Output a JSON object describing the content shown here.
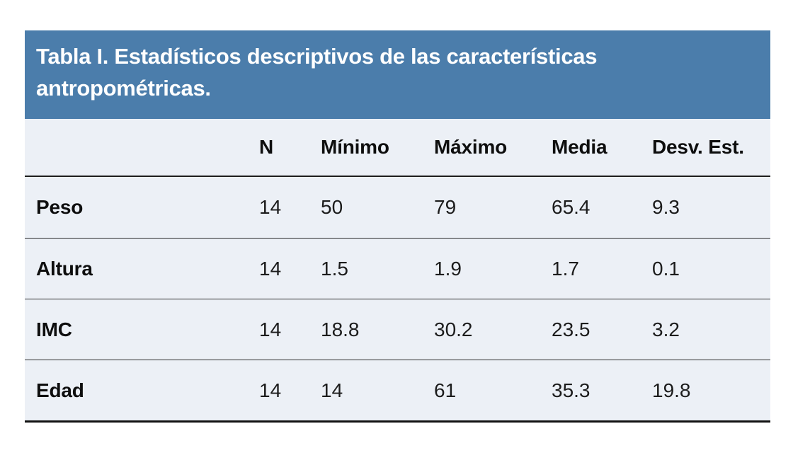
{
  "title": {
    "line1": "Tabla I. Estadísticos descriptivos de las características",
    "line2": "antropométricas."
  },
  "colors": {
    "header_bg": "#4B7DAB",
    "body_bg": "#ECF0F6",
    "line": "#1d1d1d",
    "title_text": "#FFFFFF"
  },
  "table": {
    "columns": {
      "label": "",
      "n": "N",
      "min": "Mínimo",
      "max": "Máximo",
      "media": "Media",
      "desv": "Desv. Est."
    },
    "rows": [
      {
        "label": "Peso",
        "n": "14",
        "min": "50",
        "max": "79",
        "media": "65.4",
        "desv": "9.3"
      },
      {
        "label": "Altura",
        "n": "14",
        "min": "1.5",
        "max": "1.9",
        "media": "1.7",
        "desv": "0.1"
      },
      {
        "label": "IMC",
        "n": "14",
        "min": "18.8",
        "max": "30.2",
        "media": "23.5",
        "desv": "3.2"
      },
      {
        "label": "Edad",
        "n": "14",
        "min": "14",
        "max": "61",
        "media": "35.3",
        "desv": "19.8"
      }
    ]
  },
  "chart_data": {
    "type": "table",
    "title": "Tabla I. Estadísticos descriptivos de las características antropométricas.",
    "columns": [
      "",
      "N",
      "Mínimo",
      "Máximo",
      "Media",
      "Desv. Est."
    ],
    "rows": [
      [
        "Peso",
        14,
        50,
        79,
        65.4,
        9.3
      ],
      [
        "Altura",
        14,
        1.5,
        1.9,
        1.7,
        0.1
      ],
      [
        "IMC",
        14,
        18.8,
        30.2,
        23.5,
        3.2
      ],
      [
        "Edad",
        14,
        14,
        61,
        35.3,
        19.8
      ]
    ]
  }
}
